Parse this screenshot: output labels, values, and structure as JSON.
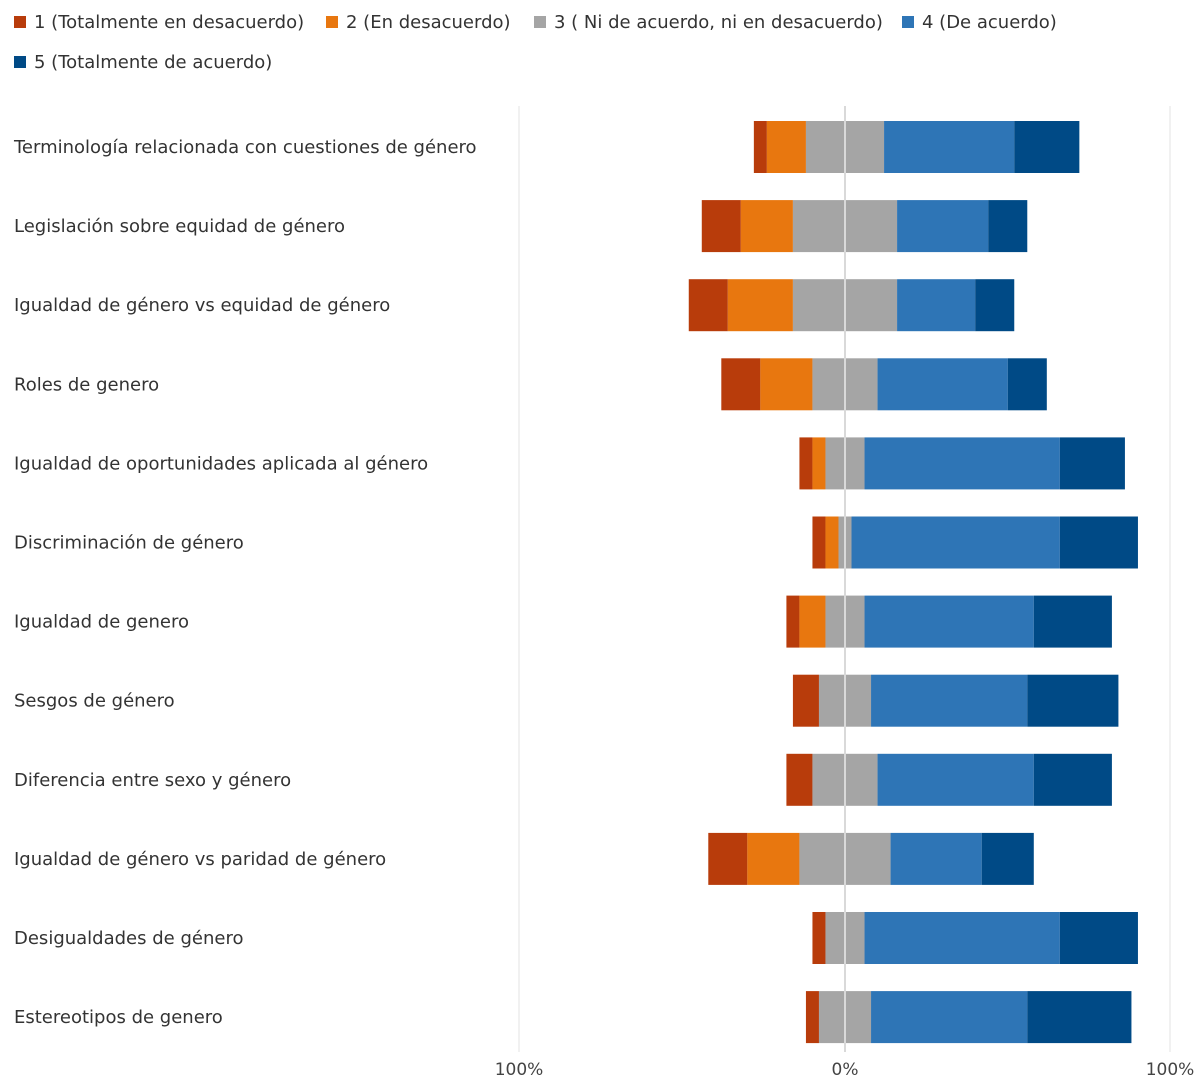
{
  "chart_data": {
    "type": "bar",
    "orientation": "horizontal-diverging",
    "title": "",
    "xlim": [
      -100,
      100
    ],
    "x_ticks": [
      "100%",
      "0%",
      "100%"
    ],
    "grid": true,
    "legend_position": "top",
    "categories": [
      "Terminología relacionada con cuestiones de género",
      "Legislación sobre equidad de género",
      "Igualdad de género vs equidad de género",
      "Roles de genero",
      "Igualdad de oportunidades aplicada al género",
      "Discriminación de género",
      "Igualdad de genero",
      "Sesgos de género",
      "Diferencia entre sexo y género",
      "Igualdad de género vs paridad de género",
      "Desigualdades de género",
      "Estereotipos de genero"
    ],
    "series": [
      {
        "name": "1 (Totalmente en desacuerdo)",
        "color": "#B83C0B",
        "values": [
          4,
          12,
          12,
          12,
          4,
          4,
          4,
          8,
          8,
          12,
          4,
          4
        ]
      },
      {
        "name": "2 (En desacuerdo)",
        "color": "#E8770F",
        "values": [
          12,
          16,
          20,
          16,
          4,
          4,
          8,
          0,
          0,
          16,
          0,
          0
        ]
      },
      {
        "name": "3 ( Ni de acuerdo, ni en desacuerdo)",
        "color": "#A5A5A5",
        "values": [
          24,
          32,
          32,
          20,
          12,
          4,
          12,
          16,
          20,
          28,
          12,
          16
        ]
      },
      {
        "name": "4 (De acuerdo)",
        "color": "#2E75B6",
        "values": [
          40,
          28,
          24,
          40,
          60,
          64,
          52,
          48,
          48,
          28,
          60,
          48
        ]
      },
      {
        "name": "5 (Totalmente de acuerdo)",
        "color": "#004A86",
        "values": [
          20,
          12,
          12,
          12,
          20,
          24,
          24,
          28,
          24,
          16,
          24,
          32
        ]
      }
    ]
  }
}
